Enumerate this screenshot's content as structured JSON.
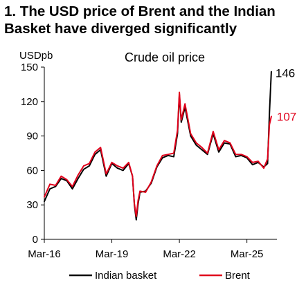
{
  "heading": {
    "line1": "1. The USD price of Brent and the Indian",
    "line2": "Basket have diverged significantly"
  },
  "chart_data": {
    "type": "line",
    "title": "Crude oil price",
    "ylabel": "USDpb",
    "xlabel": "",
    "ylim": [
      0,
      150
    ],
    "y_ticks": [
      0,
      30,
      60,
      90,
      120,
      150
    ],
    "x_range": [
      "2016-03",
      "2026-07"
    ],
    "x_ticks": [
      {
        "date": "2016-03",
        "label": "Mar-16"
      },
      {
        "date": "2019-03",
        "label": "Mar-19"
      },
      {
        "date": "2022-03",
        "label": "Mar-22"
      },
      {
        "date": "2025-03",
        "label": "Mar-25"
      }
    ],
    "grid": false,
    "legend": "bottom",
    "series": [
      {
        "name": "Indian basket",
        "color": "#000000",
        "end_label": "146",
        "x": [
          "2016-03",
          "2016-06",
          "2016-09",
          "2016-12",
          "2017-03",
          "2017-06",
          "2017-09",
          "2017-12",
          "2018-03",
          "2018-06",
          "2018-09",
          "2018-12",
          "2019-03",
          "2019-06",
          "2019-09",
          "2019-12",
          "2020-02",
          "2020-03",
          "2020-04",
          "2020-05",
          "2020-06",
          "2020-09",
          "2020-12",
          "2021-03",
          "2021-06",
          "2021-09",
          "2021-12",
          "2022-02",
          "2022-03",
          "2022-04",
          "2022-06",
          "2022-09",
          "2022-12",
          "2023-03",
          "2023-06",
          "2023-09",
          "2023-12",
          "2024-03",
          "2024-06",
          "2024-09",
          "2024-12",
          "2025-03",
          "2025-06",
          "2025-09",
          "2025-12",
          "2026-02",
          "2026-03",
          "2026-04"
        ],
        "values": [
          33,
          44,
          46,
          53,
          51,
          44,
          53,
          61,
          64,
          74,
          78,
          55,
          66,
          62,
          60,
          66,
          55,
          30,
          17,
          31,
          41,
          42,
          49,
          63,
          71,
          73,
          72,
          92,
          126,
          102,
          115,
          90,
          82,
          78,
          74,
          92,
          76,
          84,
          83,
          72,
          73,
          71,
          65,
          67,
          63,
          66,
          110,
          146
        ]
      },
      {
        "name": "Brent",
        "color": "#e0001b",
        "end_label": "107",
        "x": [
          "2016-03",
          "2016-06",
          "2016-09",
          "2016-12",
          "2017-03",
          "2017-06",
          "2017-09",
          "2017-12",
          "2018-03",
          "2018-06",
          "2018-09",
          "2018-12",
          "2019-03",
          "2019-06",
          "2019-09",
          "2019-12",
          "2020-02",
          "2020-03",
          "2020-04",
          "2020-05",
          "2020-06",
          "2020-09",
          "2020-12",
          "2021-03",
          "2021-06",
          "2021-09",
          "2021-12",
          "2022-02",
          "2022-03",
          "2022-04",
          "2022-06",
          "2022-09",
          "2022-12",
          "2023-03",
          "2023-06",
          "2023-09",
          "2023-12",
          "2024-03",
          "2024-06",
          "2024-09",
          "2024-12",
          "2025-03",
          "2025-06",
          "2025-09",
          "2025-12",
          "2026-02",
          "2026-03",
          "2026-04"
        ],
        "values": [
          37,
          48,
          47,
          55,
          52,
          46,
          56,
          64,
          66,
          76,
          80,
          57,
          67,
          64,
          62,
          67,
          55,
          31,
          20,
          34,
          42,
          41,
          50,
          64,
          73,
          74,
          75,
          95,
          128,
          104,
          118,
          92,
          84,
          80,
          75,
          94,
          78,
          86,
          84,
          74,
          74,
          72,
          67,
          68,
          62,
          70,
          100,
          107
        ]
      }
    ]
  }
}
